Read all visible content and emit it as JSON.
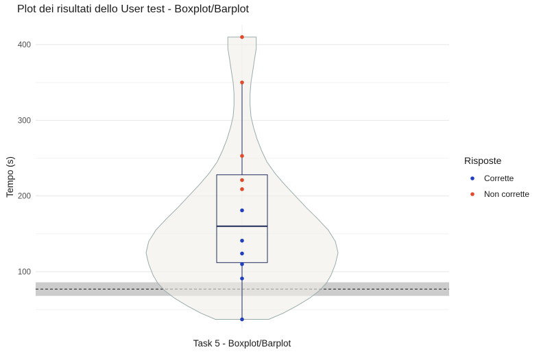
{
  "chart_data": {
    "type": "boxplot",
    "title": "Plot dei risultati dello User test - Boxplot/Barplot",
    "xlabel": "",
    "ylabel": "Tempo (s)",
    "categories": [
      "Task 5 - Boxplot/Barplot"
    ],
    "ylim": [
      25,
      420
    ],
    "yticks": [
      100,
      200,
      300,
      400
    ],
    "grid": true,
    "box": {
      "min": 37,
      "q1": 112,
      "median": 160,
      "q3": 228,
      "max": 410,
      "whisker_low": 37,
      "whisker_high": 350
    },
    "violin_density": [
      [
        37,
        0.3
      ],
      [
        45,
        0.46
      ],
      [
        55,
        0.62
      ],
      [
        65,
        0.76
      ],
      [
        75,
        0.87
      ],
      [
        85,
        0.95
      ],
      [
        95,
        1.0
      ],
      [
        110,
        1.05
      ],
      [
        125,
        1.08
      ],
      [
        140,
        1.05
      ],
      [
        155,
        0.97
      ],
      [
        170,
        0.85
      ],
      [
        185,
        0.72
      ],
      [
        200,
        0.6
      ],
      [
        215,
        0.48
      ],
      [
        230,
        0.37
      ],
      [
        245,
        0.28
      ],
      [
        260,
        0.22
      ],
      [
        275,
        0.17
      ],
      [
        290,
        0.13
      ],
      [
        305,
        0.1
      ],
      [
        320,
        0.09
      ],
      [
        335,
        0.09
      ],
      [
        350,
        0.1
      ],
      [
        365,
        0.12
      ],
      [
        380,
        0.14
      ],
      [
        395,
        0.16
      ],
      [
        410,
        0.16
      ]
    ],
    "series": [
      {
        "name": "Corrette",
        "color": "#1f3fbf",
        "values": [
          37,
          91,
          110,
          124,
          141,
          181
        ]
      },
      {
        "name": "Non corrette",
        "color": "#e04a2a",
        "values": [
          209,
          221,
          253,
          350,
          410
        ]
      }
    ],
    "reference_line": {
      "value": 77,
      "band": [
        68,
        86
      ],
      "style": "dashed"
    },
    "legend": {
      "title": "Risposte",
      "position": "right"
    }
  }
}
